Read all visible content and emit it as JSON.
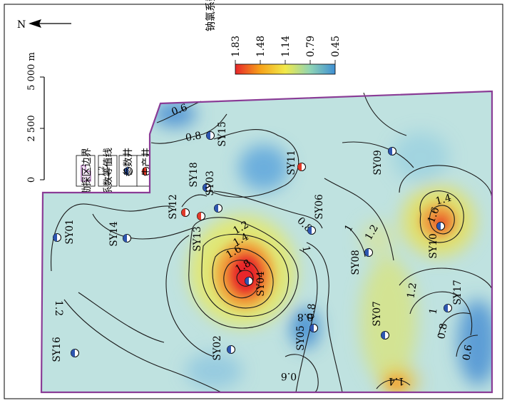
{
  "north": {
    "label": "N"
  },
  "scale_bar": {
    "ticks": [
      "0",
      "2 500",
      "5 000 m"
    ]
  },
  "legend": {
    "items": [
      {
        "label": "勘探区边界",
        "symbol": "boundary-icon"
      },
      {
        "label": "钠氯系数等值线",
        "symbol": "contour-icon",
        "sample": "1.2"
      },
      {
        "label": "参数井",
        "symbol": "parameter-well-icon"
      },
      {
        "label": "生产井",
        "symbol": "production-well-icon"
      }
    ]
  },
  "colorbar": {
    "title": "钠氯系数",
    "ticks": [
      "1.83",
      "1.48",
      "1.14",
      "0.79",
      "0.45"
    ],
    "colors": [
      "#e8262a",
      "#f6a21a",
      "#f1e94a",
      "#8fd4b5",
      "#3f8fd3"
    ]
  },
  "colors": {
    "boundary": "#8a3c96",
    "parameter_well_fill": "#2e56b0",
    "production_well_fill": "#e03a2a",
    "hot": "#e8262a",
    "cool": "#3f8fd3",
    "base": "#bfe2e0"
  },
  "wells": [
    {
      "name": "SY15",
      "type": "parameter"
    },
    {
      "name": "SY11",
      "type": "production"
    },
    {
      "name": "SY09",
      "type": "parameter"
    },
    {
      "name": "SY18",
      "type": "parameter"
    },
    {
      "name": "SY03",
      "type": "parameter"
    },
    {
      "name": "SY12",
      "type": "production"
    },
    {
      "name": "SY13",
      "type": "production"
    },
    {
      "name": "SY06",
      "type": "parameter"
    },
    {
      "name": "SY01",
      "type": "parameter"
    },
    {
      "name": "SY14",
      "type": "parameter"
    },
    {
      "name": "SY04",
      "type": "parameter"
    },
    {
      "name": "SY08",
      "type": "parameter"
    },
    {
      "name": "SY10",
      "type": "parameter"
    },
    {
      "name": "SY07",
      "type": "parameter"
    },
    {
      "name": "SY17",
      "type": "parameter"
    },
    {
      "name": "SY05",
      "type": "parameter"
    },
    {
      "name": "SY02",
      "type": "parameter"
    },
    {
      "name": "SY16",
      "type": "parameter"
    }
  ],
  "contour_labels": [
    "0.6",
    "0.8",
    "0.8",
    "1.2",
    "1.4",
    "1.6",
    "1.8",
    "1",
    "0.8",
    "1",
    "1.2",
    "1.4",
    "1.6",
    "1.2",
    "1",
    "0.8",
    "0.6",
    "1.2",
    "0.8",
    "0.6",
    "1.4"
  ]
}
